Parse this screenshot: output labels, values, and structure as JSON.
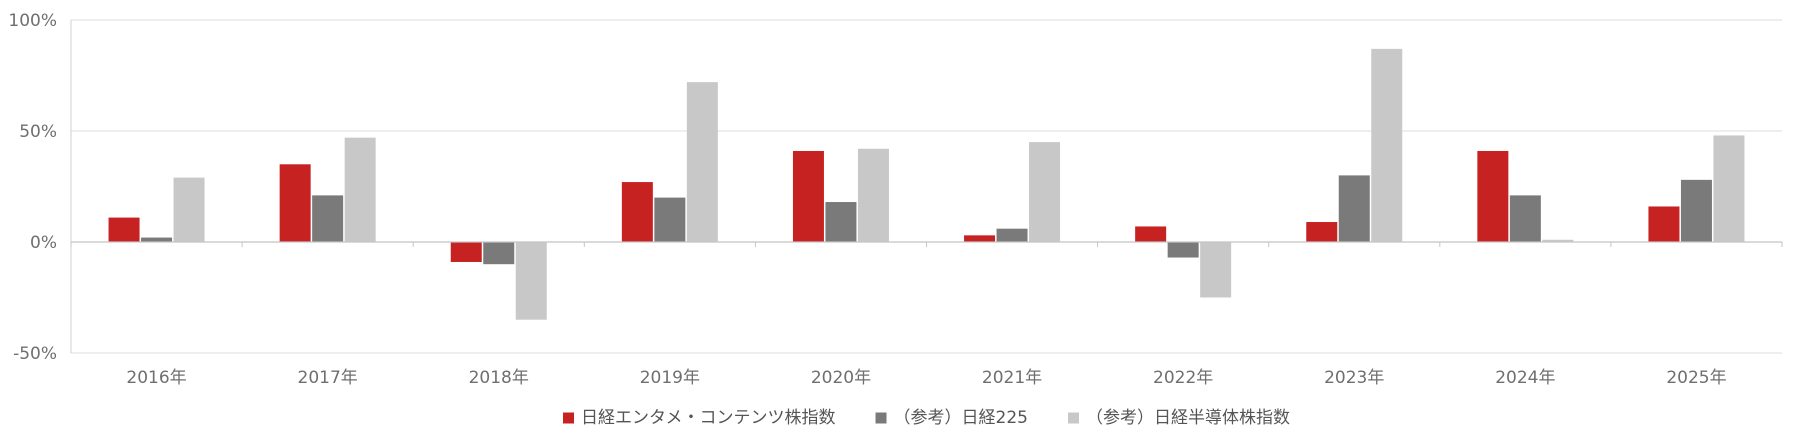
{
  "chart_data": {
    "type": "bar",
    "categories": [
      "2016年",
      "2017年",
      "2018年",
      "2019年",
      "2020年",
      "2021年",
      "2022年",
      "2023年",
      "2024年",
      "2025年"
    ],
    "series": [
      {
        "name": "日経エンタメ・コンテンツ株指数",
        "color": "#c62222",
        "values": [
          11,
          35,
          -9,
          27,
          41,
          3,
          7,
          9,
          41,
          16
        ]
      },
      {
        "name": "（参考）日経225",
        "color": "#7a7a7a",
        "values": [
          2,
          21,
          -10,
          20,
          18,
          6,
          -7,
          30,
          21,
          28
        ]
      },
      {
        "name": "（参考）日経半導体株指数",
        "color": "#c8c8c8",
        "values": [
          29,
          47,
          -35,
          72,
          42,
          45,
          -25,
          87,
          1,
          48
        ]
      }
    ],
    "y_ticks": [
      -50,
      0,
      50,
      100
    ],
    "y_tick_labels": [
      "-50%",
      "0%",
      "50%",
      "100%"
    ],
    "ylim": [
      -50,
      100
    ],
    "grid": true,
    "legend_position": "bottom"
  }
}
